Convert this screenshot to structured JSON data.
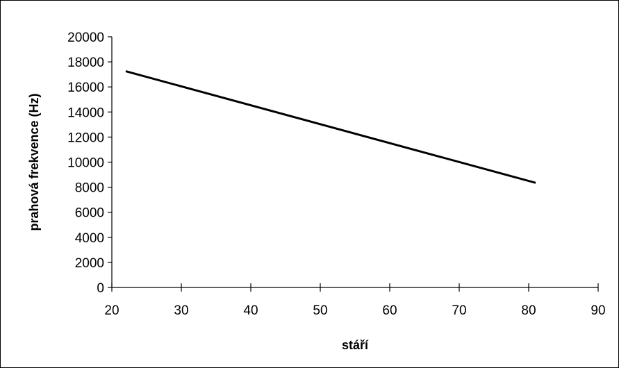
{
  "chart_data": {
    "type": "line",
    "title": "",
    "xlabel": "stáří",
    "ylabel": "prahová frekvence (Hz)",
    "xlim": [
      20,
      90
    ],
    "ylim": [
      0,
      20000
    ],
    "x_ticks": [
      20,
      30,
      40,
      50,
      60,
      70,
      80,
      90
    ],
    "y_ticks": [
      0,
      2000,
      4000,
      6000,
      8000,
      10000,
      12000,
      14000,
      16000,
      18000,
      20000
    ],
    "grid": false,
    "legend": "none",
    "series": [
      {
        "x": [
          22,
          81
        ],
        "y": [
          17250,
          8350
        ],
        "color": "#000000"
      }
    ]
  }
}
